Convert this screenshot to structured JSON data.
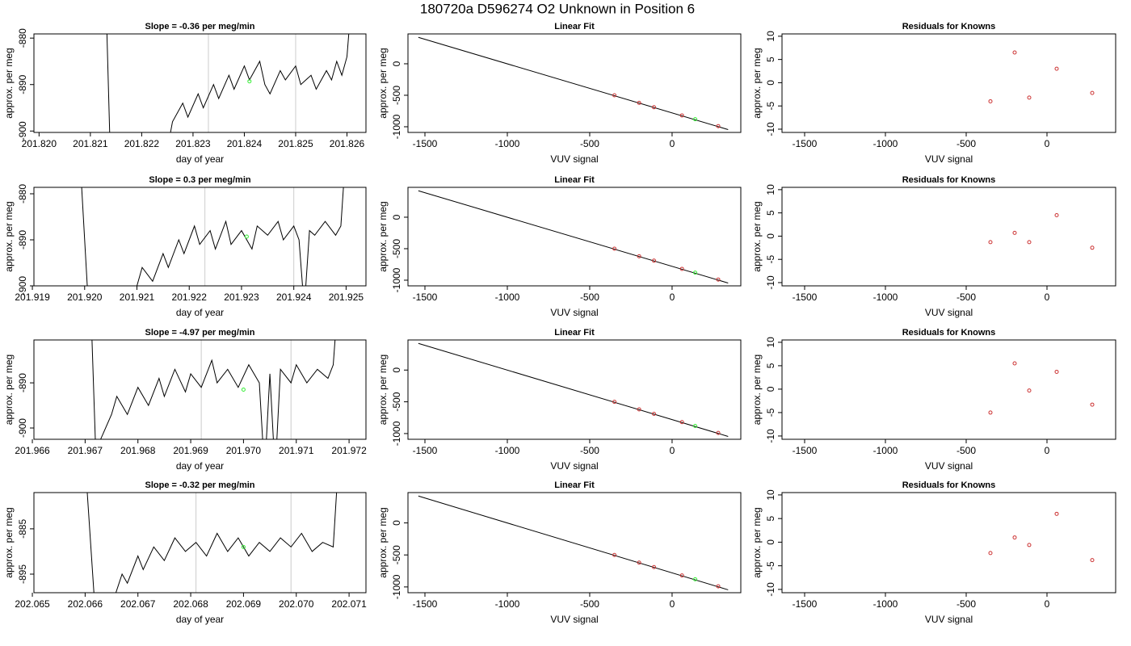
{
  "title": "180720a      D596274    O2 Unknown in Position  6",
  "chart_data": [
    {
      "type": "line",
      "title": "Slope =  -0.36  per meg/min",
      "x_label": "day of year",
      "y_label": "approx. per meg",
      "xlim": [
        201.8199,
        201.82637
      ],
      "ylim": [
        -900.3,
        -879.1
      ],
      "xticks": [
        {
          "value": 201.82,
          "label": "201.820"
        },
        201.821,
        201.822,
        201.823,
        201.824,
        201.825,
        201.826
      ],
      "yticks": [
        -900,
        -890,
        -880
      ],
      "color": "#000000",
      "vlines": [
        201.8233,
        201.825
      ],
      "vline_color": "#cccccc",
      "x": [
        201.8213,
        201.8214,
        201.8224,
        201.8226,
        201.8228,
        201.8229,
        201.8231,
        201.8232,
        201.8234,
        201.8235,
        201.8237,
        201.8238,
        201.824,
        201.8241,
        201.8243,
        201.8244,
        201.8245,
        201.8247,
        201.8248,
        201.825,
        201.8251,
        201.8253,
        201.8254,
        201.8256,
        201.8257,
        201.8258,
        201.8259,
        201.826,
        201.8261
      ],
      "values": [
        -870,
        -910,
        -910,
        -898,
        -894,
        -897,
        -892,
        -895,
        -890,
        -893,
        -888,
        -891,
        -886,
        -889,
        -885,
        -890,
        -892,
        -887,
        -889,
        -886,
        -890,
        -888,
        -891,
        -887,
        -889,
        -885,
        -888,
        -884,
        -870
      ],
      "unknown": {
        "x": [
          201.8241
        ],
        "values": [
          -889.3
        ],
        "color": "#33ee33"
      }
    },
    {
      "type": "scatter",
      "title": "Linear Fit",
      "x_label": "VUV signal",
      "y_label": "approx. per meg",
      "xlim": [
        -1603,
        417
      ],
      "ylim": [
        -1090,
        474
      ],
      "xticks": [
        -1500,
        -1000,
        -500,
        0
      ],
      "yticks": [
        -1000,
        -500,
        0
      ],
      "x": [
        -350,
        -200,
        -110,
        60,
        280
      ],
      "values": [
        -500,
        -620,
        -690,
        -820,
        -990
      ],
      "color": "#cc3333",
      "unknown": {
        "x": [
          140
        ],
        "values": [
          -880
        ],
        "color": "#33ee33"
      },
      "fit_line": {
        "x": [
          -1540,
          340
        ],
        "values": [
          420,
          -1045
        ],
        "color": "#000000"
      }
    },
    {
      "type": "scatter",
      "title": "Residuals for Knowns",
      "x_label": "VUV signal",
      "y_label": "approx. per meg",
      "xlim": [
        -1640,
        425
      ],
      "ylim": [
        -10.7,
        10.5
      ],
      "xticks": [
        -1500,
        -1000,
        -500,
        0
      ],
      "yticks": [
        -10,
        -5,
        0,
        5,
        10
      ],
      "x": [
        -350,
        -200,
        -110,
        60,
        280
      ],
      "values": [
        -4,
        6.5,
        -3.2,
        3,
        -2.2
      ],
      "color": "#cc3333"
    },
    {
      "type": "line",
      "title": "Slope =  0.3  per meg/min",
      "x_label": "day of year",
      "y_label": "approx. per meg",
      "xlim": [
        201.91903,
        201.92538
      ],
      "ylim": [
        -900,
        -878.6
      ],
      "xticks": [
        201.919,
        {
          "value": 201.92,
          "label": "201.920"
        },
        201.921,
        201.922,
        201.923,
        201.924,
        201.925
      ],
      "yticks": [
        -900,
        -890,
        -880
      ],
      "color": "#000000",
      "vlines": [
        201.9223,
        201.924
      ],
      "vline_color": "#cccccc",
      "x": [
        201.9199,
        201.9201,
        201.921,
        201.9211,
        201.9213,
        201.9215,
        201.9216,
        201.9218,
        201.9219,
        201.9221,
        201.9222,
        201.9224,
        201.9225,
        201.9227,
        201.9228,
        201.923,
        201.9232,
        201.9233,
        201.9235,
        201.9237,
        201.9238,
        201.924,
        201.9241,
        201.9242,
        201.9243,
        201.9244,
        201.9246,
        201.9248,
        201.9249,
        201.925
      ],
      "values": [
        -870,
        -910,
        -900,
        -896,
        -899,
        -893,
        -896,
        -890,
        -893,
        -887,
        -891,
        -888,
        -892,
        -886,
        -891,
        -888,
        -892,
        -887,
        -889,
        -886,
        -890,
        -887,
        -890,
        -905,
        -888,
        -889,
        -886,
        -889,
        -887,
        -870
      ],
      "unknown": {
        "x": [
          201.9231
        ],
        "values": [
          -889.3
        ],
        "color": "#33ee33"
      }
    },
    {
      "type": "scatter",
      "title": "Linear Fit",
      "x_label": "VUV signal",
      "y_label": "approx. per meg",
      "xlim": [
        -1603,
        417
      ],
      "ylim": [
        -1090,
        474
      ],
      "xticks": [
        -1500,
        -1000,
        -500,
        0
      ],
      "yticks": [
        -1000,
        -500,
        0
      ],
      "x": [
        -350,
        -200,
        -110,
        60,
        280
      ],
      "values": [
        -500,
        -620,
        -690,
        -820,
        -990
      ],
      "color": "#cc3333",
      "unknown": {
        "x": [
          140
        ],
        "values": [
          -880
        ],
        "color": "#33ee33"
      },
      "fit_line": {
        "x": [
          -1540,
          340
        ],
        "values": [
          420,
          -1045
        ],
        "color": "#000000"
      }
    },
    {
      "type": "scatter",
      "title": "Residuals for Knowns",
      "x_label": "VUV signal",
      "y_label": "approx. per meg",
      "xlim": [
        -1640,
        425
      ],
      "ylim": [
        -10.7,
        10.5
      ],
      "xticks": [
        -1500,
        -1000,
        -500,
        0
      ],
      "yticks": [
        -10,
        -5,
        0,
        5,
        10
      ],
      "x": [
        -350,
        -200,
        -110,
        60,
        280
      ],
      "values": [
        -1.3,
        0.7,
        -1.3,
        4.5,
        -2.5
      ],
      "color": "#cc3333"
    },
    {
      "type": "line",
      "title": "Slope =  -4.97  per meg/min",
      "x_label": "day of year",
      "y_label": "approx. per meg",
      "xlim": [
        201.96603,
        201.97232
      ],
      "ylim": [
        -902.5,
        -880.5
      ],
      "xticks": [
        201.966,
        201.967,
        201.968,
        201.969,
        {
          "value": 201.97,
          "label": "201.970"
        },
        201.971,
        201.972
      ],
      "yticks": [
        -900,
        -890
      ],
      "color": "#000000",
      "vlines": [
        201.9692,
        201.9709
      ],
      "vline_color": "#cccccc",
      "x": [
        201.9671,
        201.9672,
        201.9675,
        201.9676,
        201.9678,
        201.968,
        201.9682,
        201.9684,
        201.9685,
        201.9687,
        201.9689,
        201.969,
        201.9692,
        201.9694,
        201.9695,
        201.9697,
        201.9699,
        201.9701,
        201.9703,
        201.9704,
        201.9705,
        201.9706,
        201.9707,
        201.9709,
        201.971,
        201.9712,
        201.9714,
        201.9716,
        201.9717,
        201.9718
      ],
      "values": [
        -870,
        -905,
        -897,
        -893,
        -897,
        -891,
        -895,
        -889,
        -893,
        -887,
        -892,
        -888,
        -891,
        -885,
        -890,
        -887,
        -891,
        -886,
        -890,
        -910,
        -888,
        -910,
        -887,
        -890,
        -886,
        -890,
        -887,
        -889,
        -886,
        -870
      ],
      "unknown": {
        "x": [
          201.97
        ],
        "values": [
          -891.5
        ],
        "color": "#33ee33"
      }
    },
    {
      "type": "scatter",
      "title": "Linear Fit",
      "x_label": "VUV signal",
      "y_label": "approx. per meg",
      "xlim": [
        -1603,
        417
      ],
      "ylim": [
        -1090,
        474
      ],
      "xticks": [
        -1500,
        -1000,
        -500,
        0
      ],
      "yticks": [
        -1000,
        -500,
        0
      ],
      "x": [
        -350,
        -200,
        -110,
        60,
        280
      ],
      "values": [
        -500,
        -620,
        -690,
        -820,
        -990
      ],
      "color": "#cc3333",
      "unknown": {
        "x": [
          140
        ],
        "values": [
          -880
        ],
        "color": "#33ee33"
      },
      "fit_line": {
        "x": [
          -1540,
          340
        ],
        "values": [
          420,
          -1045
        ],
        "color": "#000000"
      }
    },
    {
      "type": "scatter",
      "title": "Residuals for Knowns",
      "x_label": "VUV signal",
      "y_label": "approx. per meg",
      "xlim": [
        -1640,
        425
      ],
      "ylim": [
        -10.7,
        10.5
      ],
      "xticks": [
        -1500,
        -1000,
        -500,
        0
      ],
      "yticks": [
        -10,
        -5,
        0,
        5,
        10
      ],
      "x": [
        -350,
        -200,
        -110,
        60,
        280
      ],
      "values": [
        -5,
        5.5,
        -0.3,
        3.7,
        -3.3
      ],
      "color": "#cc3333"
    },
    {
      "type": "line",
      "title": "Slope =  -0.32  per meg/min",
      "x_label": "day of year",
      "y_label": "approx. per meg",
      "xlim": [
        202.06503,
        202.07132
      ],
      "ylim": [
        -899.1,
        -877
      ],
      "xticks": [
        202.065,
        202.066,
        202.067,
        202.068,
        202.069,
        {
          "value": 202.07,
          "label": "202.070"
        },
        202.071
      ],
      "yticks": [
        -895,
        -885
      ],
      "color": "#000000",
      "vlines": [
        202.0681,
        202.0699
      ],
      "vline_color": "#cccccc",
      "x": [
        202.066,
        202.0662,
        202.0665,
        202.0667,
        202.0668,
        202.067,
        202.0671,
        202.0673,
        202.0675,
        202.0677,
        202.0679,
        202.0681,
        202.0683,
        202.0685,
        202.0687,
        202.0689,
        202.0691,
        202.0693,
        202.0695,
        202.0697,
        202.0699,
        202.0701,
        202.0703,
        202.0705,
        202.0707,
        202.0708
      ],
      "values": [
        -870,
        -905,
        -902,
        -895,
        -897,
        -891,
        -894,
        -889,
        -892,
        -887,
        -890,
        -888,
        -891,
        -886,
        -890,
        -887,
        -891,
        -888,
        -890,
        -887,
        -889,
        -886,
        -890,
        -888,
        -889,
        -870
      ],
      "unknown": {
        "x": [
          202.069
        ],
        "values": [
          -889
        ],
        "color": "#33ee33"
      }
    },
    {
      "type": "scatter",
      "title": "Linear Fit",
      "x_label": "VUV signal",
      "y_label": "approx. per meg",
      "xlim": [
        -1603,
        417
      ],
      "ylim": [
        -1090,
        474
      ],
      "xticks": [
        -1500,
        -1000,
        -500,
        0
      ],
      "yticks": [
        -1000,
        -500,
        0
      ],
      "x": [
        -350,
        -200,
        -110,
        60,
        280
      ],
      "values": [
        -500,
        -620,
        -690,
        -820,
        -990
      ],
      "color": "#cc3333",
      "unknown": {
        "x": [
          140
        ],
        "values": [
          -880
        ],
        "color": "#33ee33"
      },
      "fit_line": {
        "x": [
          -1540,
          340
        ],
        "values": [
          420,
          -1045
        ],
        "color": "#000000"
      }
    },
    {
      "type": "scatter",
      "title": "Residuals for Knowns",
      "x_label": "VUV signal",
      "y_label": "approx. per meg",
      "xlim": [
        -1640,
        425
      ],
      "ylim": [
        -10.7,
        10.5
      ],
      "xticks": [
        -1500,
        -1000,
        -500,
        0
      ],
      "yticks": [
        -10,
        -5,
        0,
        5,
        10
      ],
      "x": [
        -350,
        -200,
        -110,
        60,
        280
      ],
      "values": [
        -2.3,
        1,
        -0.6,
        6,
        -3.8
      ],
      "color": "#cc3333"
    }
  ]
}
